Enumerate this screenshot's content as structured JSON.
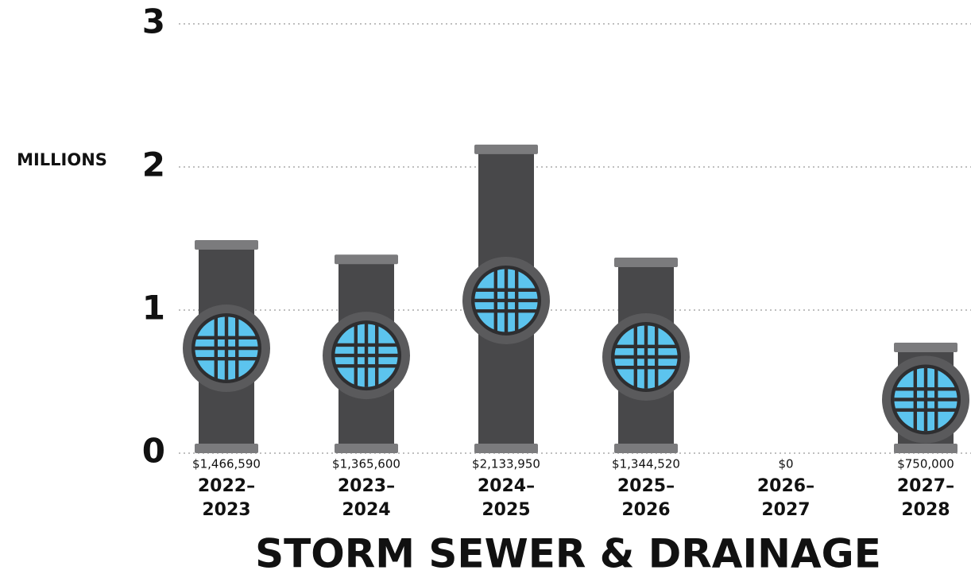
{
  "chart_data": {
    "type": "bar",
    "title": "STORM SEWER & DRAINAGE",
    "y_label": "MILLIONS",
    "categories": [
      "2022–2023",
      "2023–2024",
      "2024–2025",
      "2025–2026",
      "2026–2027",
      "2027–2028"
    ],
    "values": [
      1.46659,
      1.3656,
      2.13395,
      1.34452,
      0,
      0.75
    ],
    "value_labels": [
      "$1,466,590",
      "$1,365,600",
      "$2,133,950",
      "$1,344,520",
      "$0",
      "$750,000"
    ],
    "color": "#48484a",
    "ylim": [
      0,
      3
    ],
    "yticks": [
      0,
      1,
      2,
      3
    ],
    "grid": true
  }
}
